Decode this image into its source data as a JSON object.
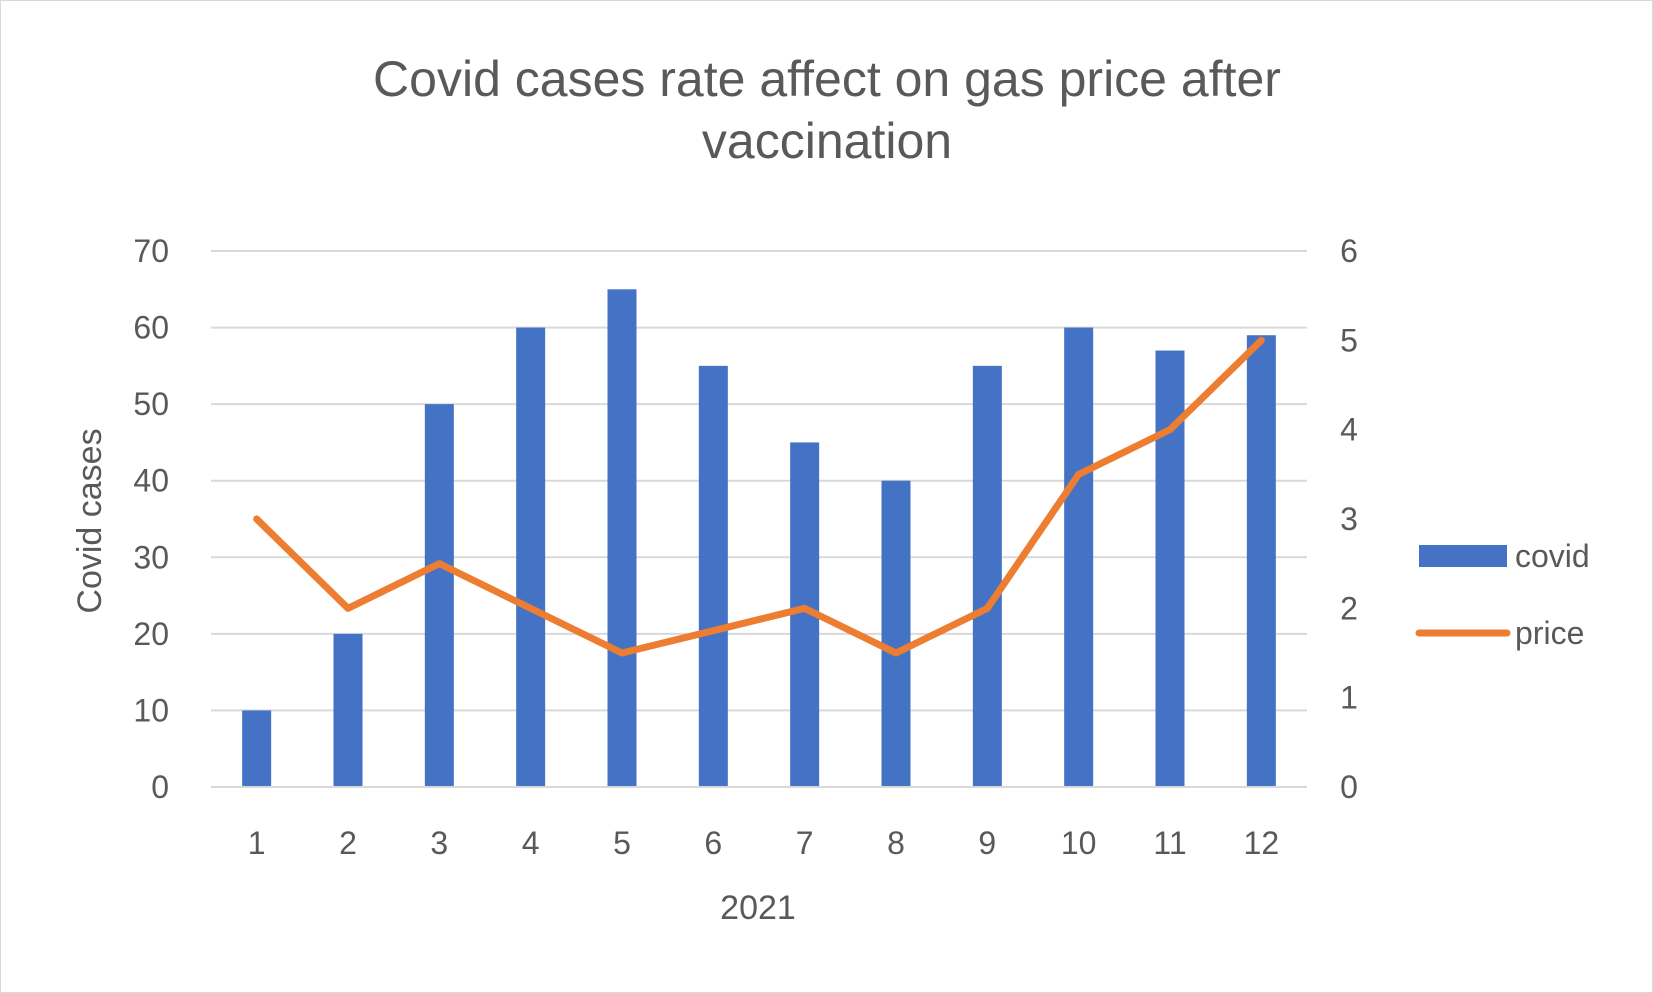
{
  "chart_data": {
    "type": "bar",
    "title": [
      "Covid cases rate affect on gas price after",
      "vaccination"
    ],
    "xlabel": "2021",
    "ylabel": "Covid cases",
    "y2label": "",
    "categories": [
      "1",
      "2",
      "3",
      "4",
      "5",
      "6",
      "7",
      "8",
      "9",
      "10",
      "11",
      "12"
    ],
    "ylim": [
      0,
      70
    ],
    "y_ticks": [
      "0",
      "10",
      "20",
      "30",
      "40",
      "50",
      "60",
      "70"
    ],
    "y2lim": [
      0,
      6
    ],
    "y2_ticks": [
      "0",
      "1",
      "2",
      "3",
      "4",
      "5",
      "6"
    ],
    "grid": true,
    "legend_position": "right",
    "series": [
      {
        "name": "covid",
        "type": "bar",
        "axis": "left",
        "color": "#4472c4",
        "values": [
          10,
          20,
          50,
          60,
          65,
          55,
          45,
          40,
          55,
          60,
          57,
          59
        ]
      },
      {
        "name": "price",
        "type": "line",
        "axis": "right",
        "color": "#ed7d31",
        "values": [
          3,
          2,
          2.5,
          2,
          1.5,
          1.75,
          2,
          1.5,
          2,
          3.5,
          4,
          5
        ]
      }
    ]
  }
}
